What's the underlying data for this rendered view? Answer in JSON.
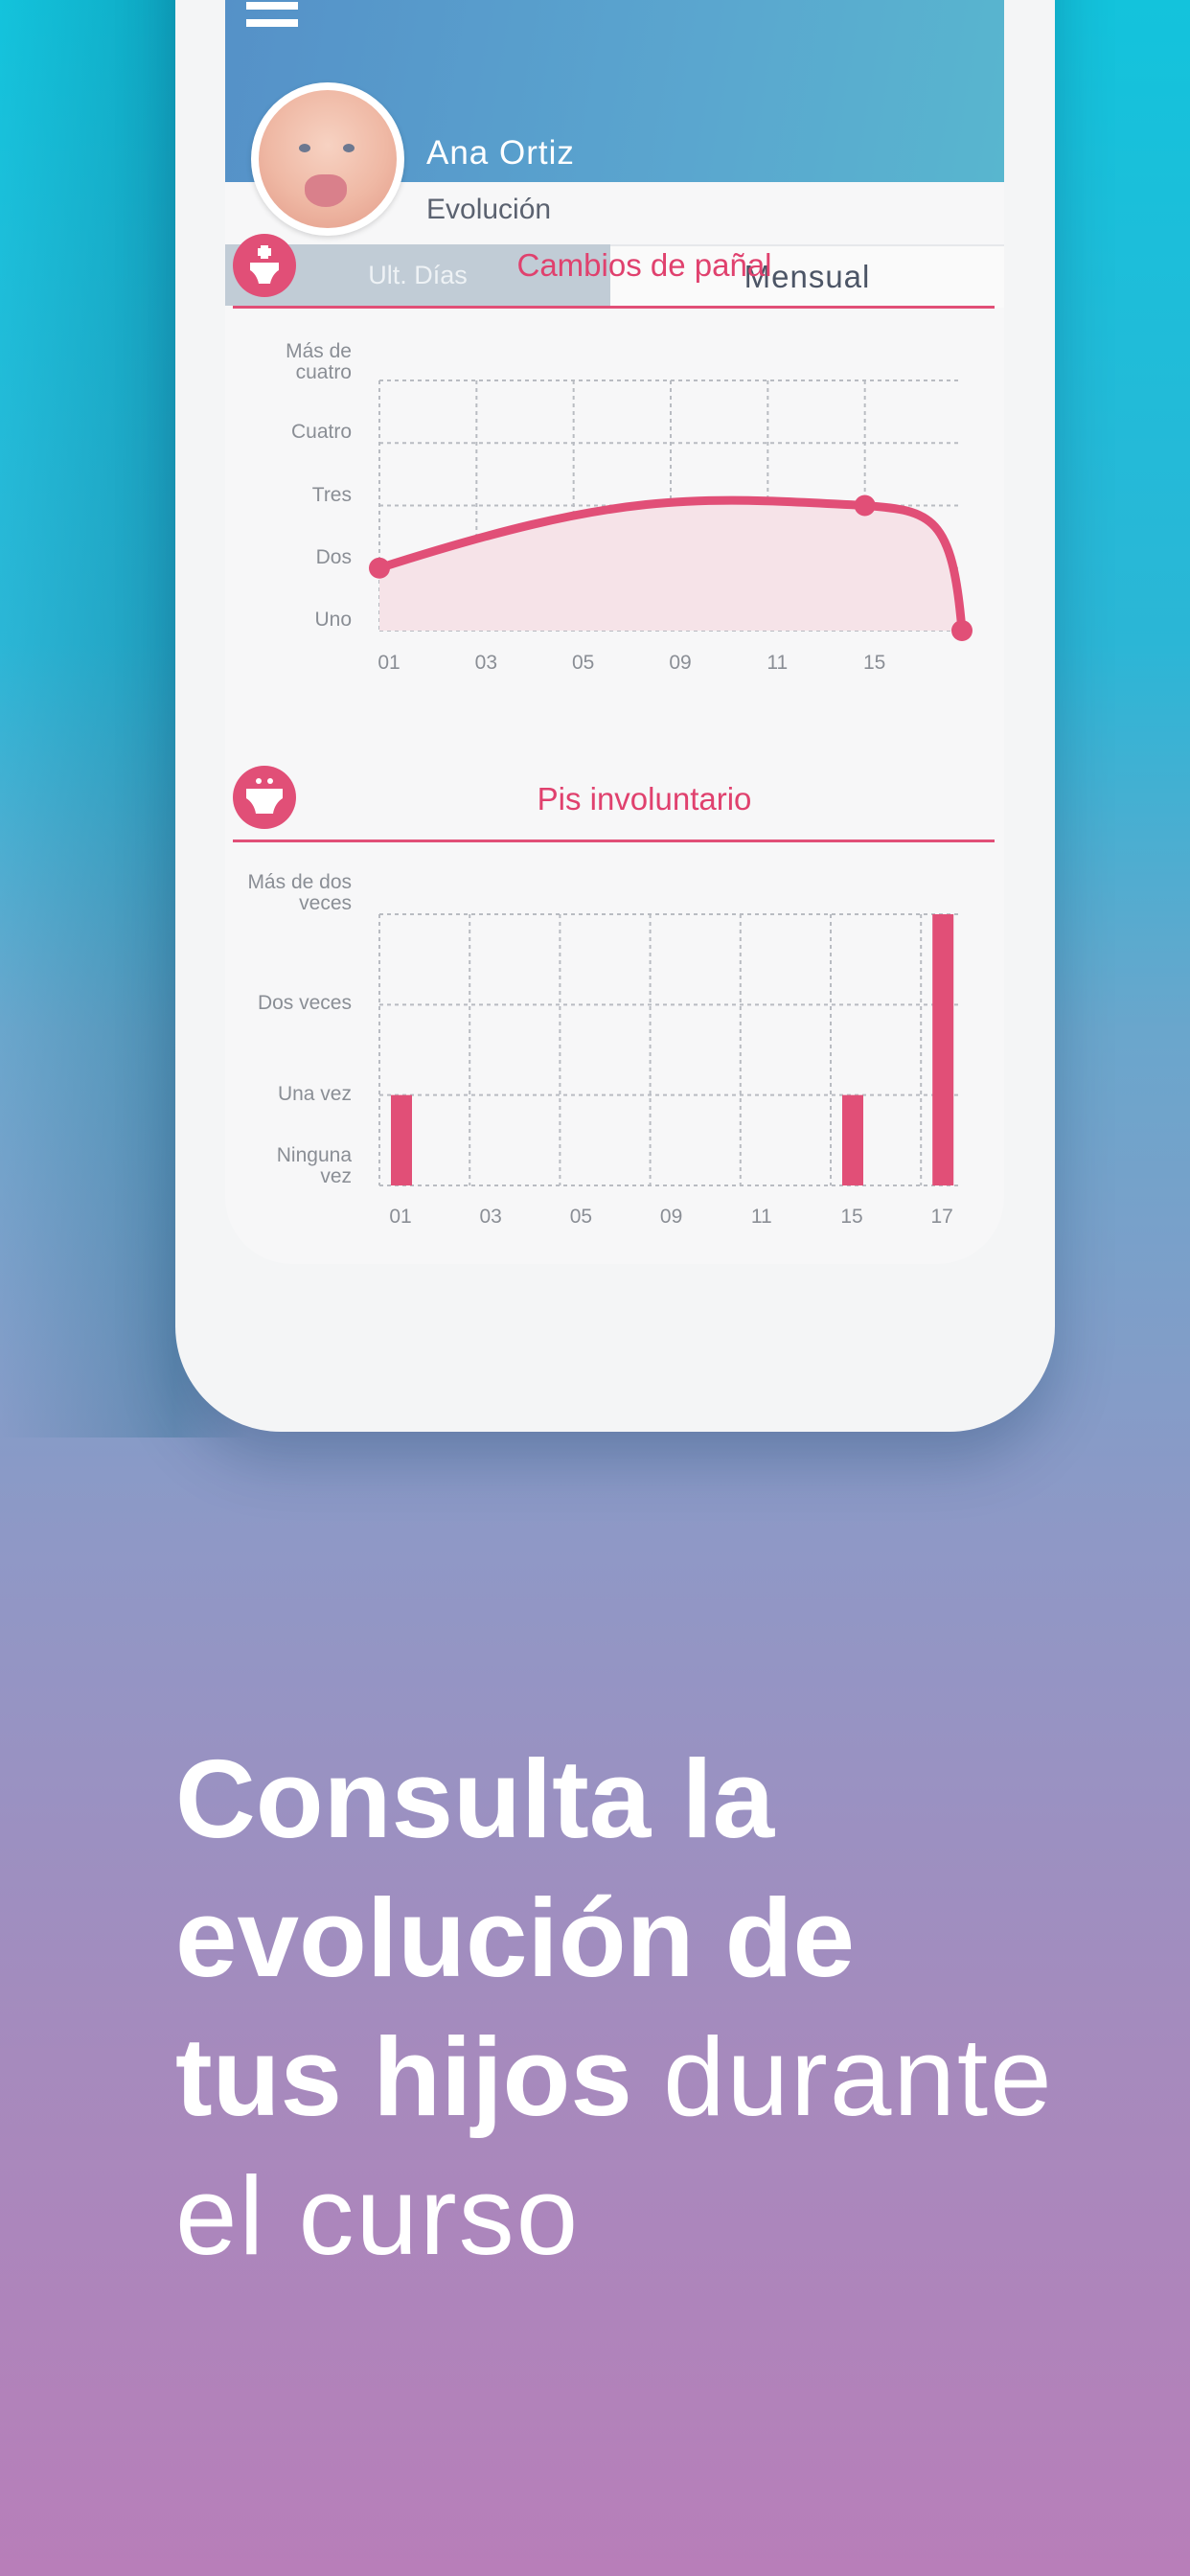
{
  "app": {
    "child_name": "Ana Ortiz",
    "section": "Evolución",
    "tabs": [
      {
        "label": "Ult. Días",
        "active": false
      },
      {
        "label": "Mensual",
        "active": true
      }
    ],
    "accent_color": "#e14f77"
  },
  "charts": {
    "diaper": {
      "title": "Cambios de pañal",
      "icon": "diaper-plus-icon"
    },
    "pee": {
      "title": "Pis involuntario",
      "icon": "wet-diaper-icon"
    }
  },
  "chart_data": [
    {
      "type": "area",
      "title": "Cambios de pañal",
      "x_ticks": [
        "01",
        "03",
        "05",
        "09",
        "11",
        "15"
      ],
      "y_ticks": [
        "Uno",
        "Dos",
        "Tres",
        "Cuatro",
        "Más de cuatro"
      ],
      "x": [
        "01",
        "15",
        "17"
      ],
      "values": [
        2,
        3,
        1
      ],
      "ylim": [
        1,
        5
      ],
      "grid": true,
      "color": "#e14f77"
    },
    {
      "type": "bar",
      "title": "Pis involuntario",
      "categories": [
        "01",
        "03",
        "05",
        "09",
        "11",
        "15",
        "17"
      ],
      "y_ticks": [
        "Ninguna vez",
        "Una vez",
        "Dos veces",
        "Más de dos veces"
      ],
      "values": [
        1,
        0,
        0,
        0,
        0,
        1,
        3
      ],
      "ylim": [
        0,
        3
      ],
      "grid": true,
      "color": "#e14f77"
    }
  ],
  "promo": {
    "bold_1": "Consulta la",
    "bold_2": "evolución de",
    "bold_3": "tus hijos",
    "light_1": "durante",
    "light_2": "el curso"
  }
}
